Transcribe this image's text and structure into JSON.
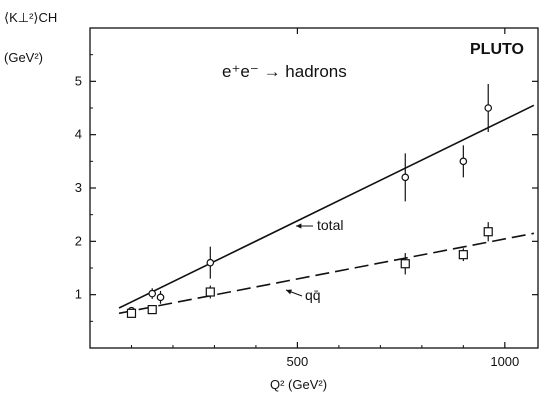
{
  "chart_data": {
    "type": "scatter",
    "title": "PLUTO",
    "subtitle": "e⁺e⁻ → hadrons",
    "xlabel": "Q² (GeV²)",
    "ylabel_line1": "⟨K⊥²⟩CH",
    "ylabel_line2": "(GeV²)",
    "xlim": [
      0,
      1080
    ],
    "ylim": [
      0,
      6
    ],
    "x_ticks": [
      500,
      1000
    ],
    "y_ticks": [
      1,
      2,
      3,
      4,
      5
    ],
    "grid": false,
    "series": [
      {
        "name": "total",
        "marker": "circle",
        "points": [
          {
            "x": 100,
            "y": 0.7,
            "err": 0.05
          },
          {
            "x": 150,
            "y": 1.02,
            "err": 0.1
          },
          {
            "x": 170,
            "y": 0.95,
            "err": 0.12
          },
          {
            "x": 290,
            "y": 1.6,
            "err": 0.3
          },
          {
            "x": 760,
            "y": 3.2,
            "err": 0.45
          },
          {
            "x": 900,
            "y": 3.5,
            "err": 0.3
          },
          {
            "x": 960,
            "y": 4.5,
            "err": 0.45
          }
        ],
        "fit": {
          "x": [
            70,
            1070
          ],
          "y": [
            0.75,
            4.55
          ],
          "style": "solid"
        }
      },
      {
        "name": "qq̄",
        "marker": "square",
        "points": [
          {
            "x": 100,
            "y": 0.65,
            "err": 0.04
          },
          {
            "x": 150,
            "y": 0.72,
            "err": 0.05
          },
          {
            "x": 290,
            "y": 1.05,
            "err": 0.12
          },
          {
            "x": 760,
            "y": 1.58,
            "err": 0.2
          },
          {
            "x": 900,
            "y": 1.75,
            "err": 0.12
          },
          {
            "x": 960,
            "y": 2.18,
            "err": 0.18
          }
        ],
        "fit": {
          "x": [
            70,
            1070
          ],
          "y": [
            0.65,
            2.15
          ],
          "style": "dashed"
        }
      }
    ],
    "annotations": {
      "total_label": "total",
      "qq_label": "qq̄"
    }
  }
}
